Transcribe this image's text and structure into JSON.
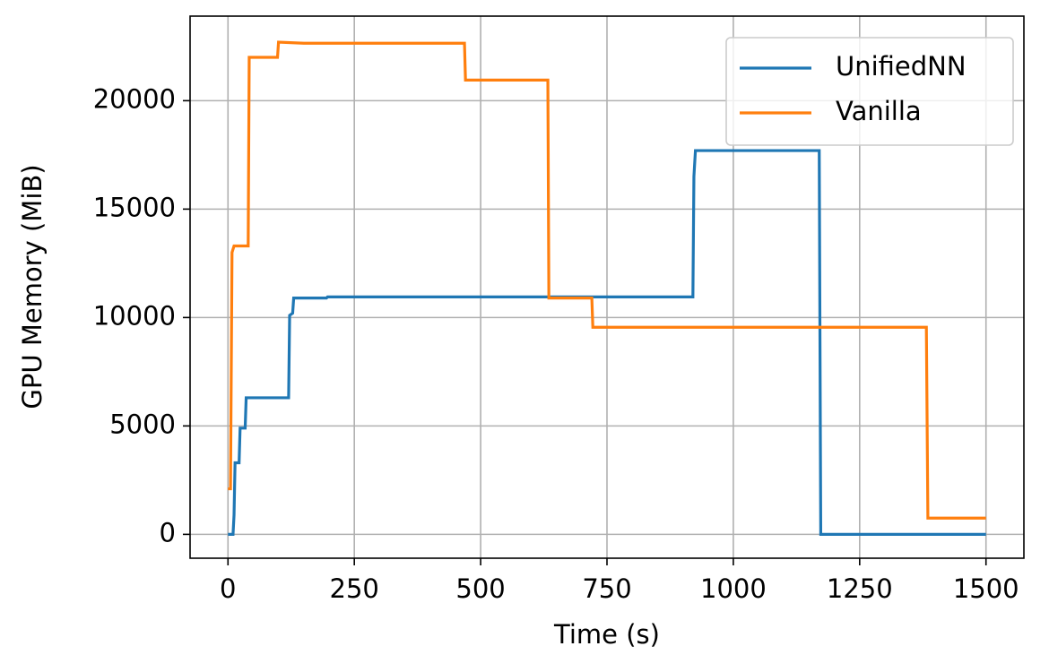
{
  "chart_data": {
    "type": "line",
    "x_label": "Time (s)",
    "y_label": "GPU Memory (MiB)",
    "series": [
      {
        "name": "UnifiedNN",
        "color": "#1f77b4",
        "x": [
          0,
          10,
          12,
          14,
          22,
          24,
          34,
          36,
          120,
          122,
          128,
          130,
          195,
          197,
          920,
          922,
          925,
          1170,
          1173,
          1500
        ],
        "values": [
          0,
          0,
          900,
          3300,
          3300,
          4900,
          4900,
          6300,
          6300,
          10100,
          10200,
          10900,
          10900,
          10950,
          10950,
          16500,
          17700,
          17700,
          0,
          0
        ]
      },
      {
        "name": "Vanilla",
        "color": "#ff7f0e",
        "x": [
          0,
          5,
          8,
          12,
          40,
          42,
          98,
          100,
          150,
          468,
          470,
          633,
          635,
          720,
          722,
          1382,
          1385,
          1500
        ],
        "values": [
          2100,
          2100,
          13000,
          13300,
          13300,
          22000,
          22000,
          22700,
          22650,
          22650,
          20950,
          20950,
          10900,
          10900,
          9550,
          9550,
          750,
          750
        ]
      }
    ],
    "xlim": [
      -75,
      1575
    ],
    "xticks": [
      0,
      250,
      500,
      750,
      1000,
      1250,
      1500
    ],
    "ylim": [
      -1100,
      23900
    ],
    "yticks": [
      0,
      5000,
      10000,
      15000,
      20000
    ],
    "grid": true,
    "legend": "upper right"
  }
}
